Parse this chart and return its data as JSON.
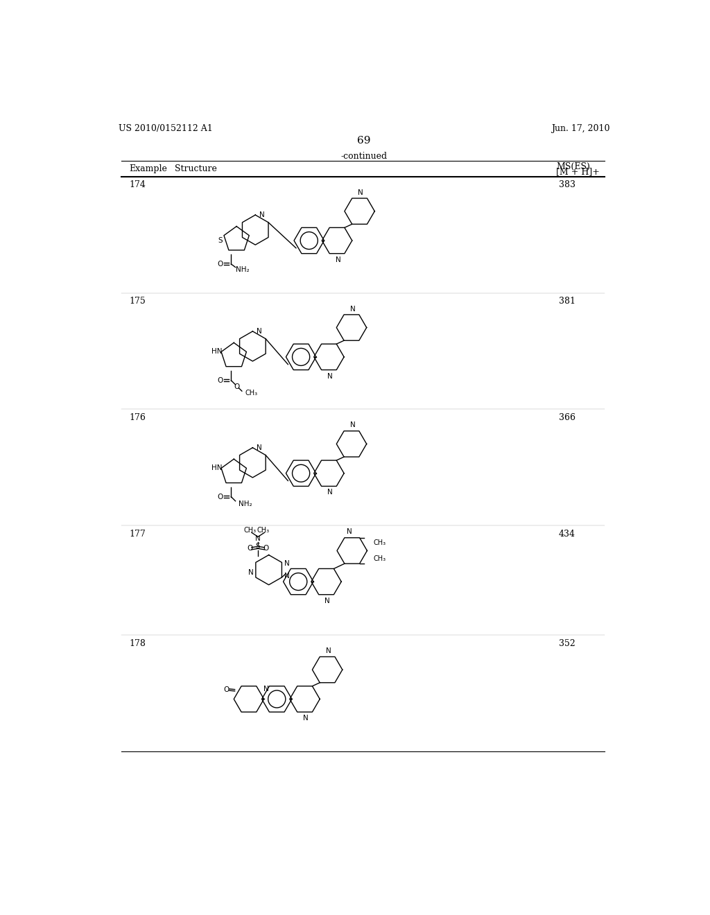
{
  "background_color": "#ffffff",
  "page_number": "69",
  "left_header": "US 2010/0152112 A1",
  "right_header": "Jun. 17, 2010",
  "table_title": "-continued",
  "col1_header": "Example",
  "col2_header": "Structure",
  "col3_header_line1": "MS(ES)",
  "col3_header_line2": "[M + H]+",
  "rows": [
    {
      "example": "174",
      "ms": "383"
    },
    {
      "example": "175",
      "ms": "381"
    },
    {
      "example": "176",
      "ms": "366"
    },
    {
      "example": "177",
      "ms": "434"
    },
    {
      "example": "178",
      "ms": "352"
    }
  ],
  "font_size_header": 9,
  "font_size_body": 9,
  "font_size_page_num": 11,
  "font_size_patent": 9,
  "line_color": "#000000"
}
